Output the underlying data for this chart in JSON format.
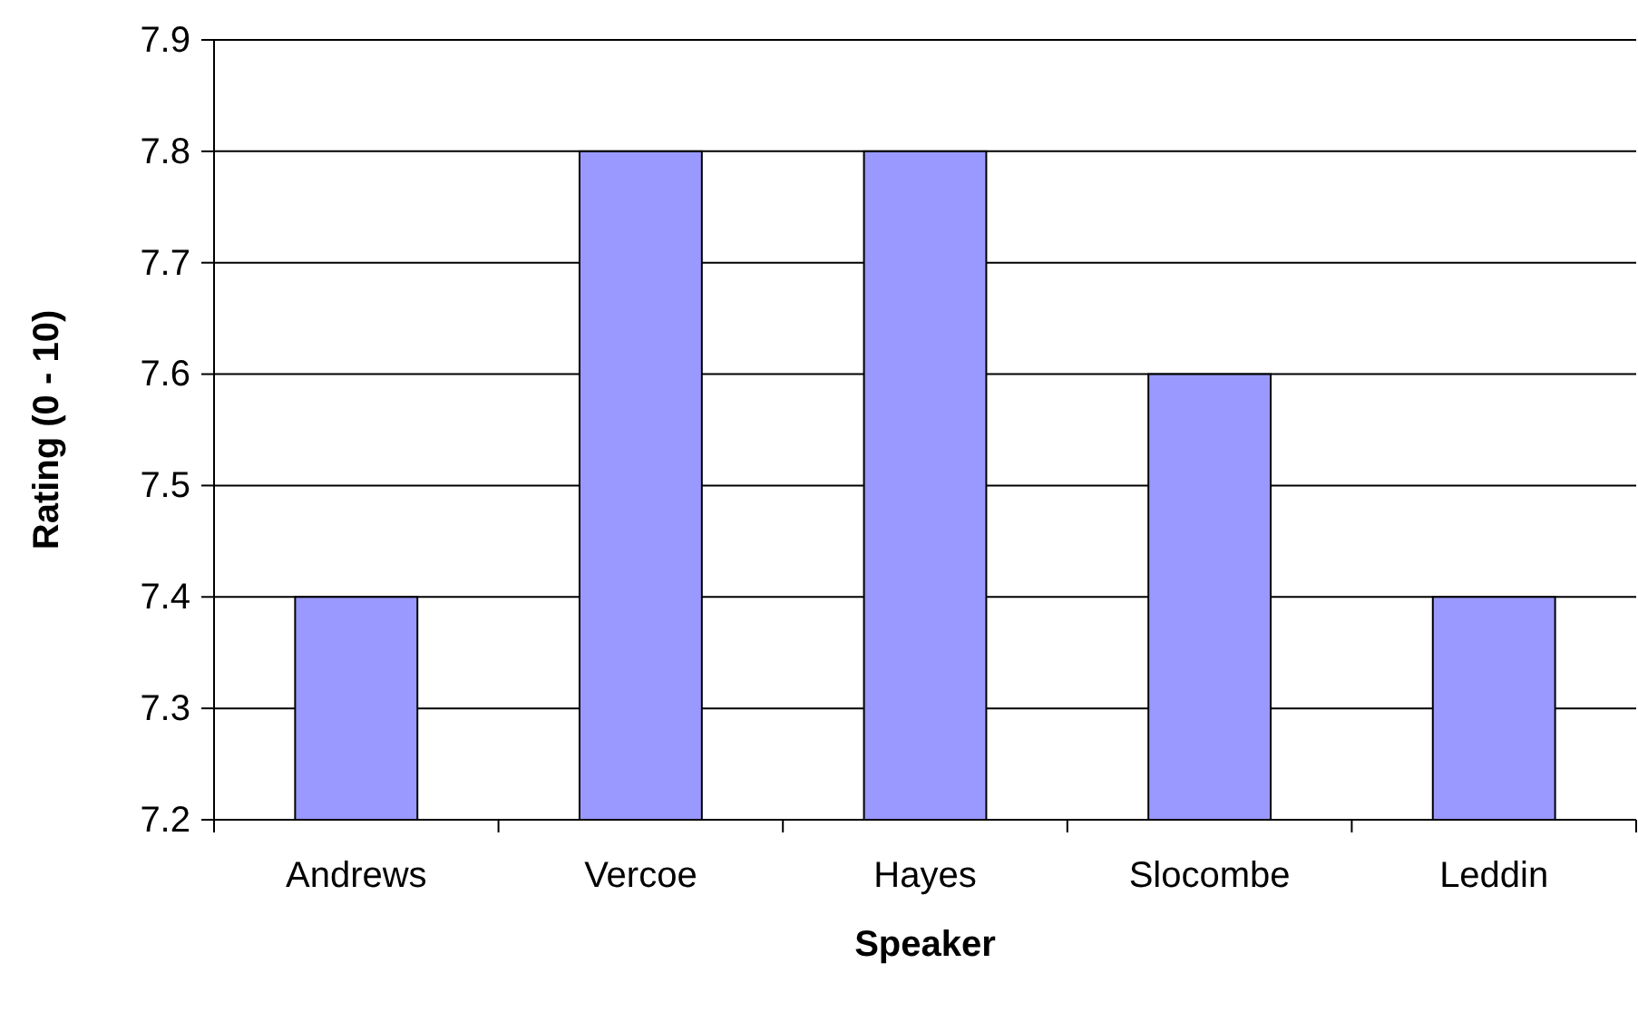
{
  "chart_data": {
    "type": "bar",
    "xlabel": "Speaker",
    "ylabel": "Rating (0 - 10)",
    "categories": [
      "Andrews",
      "Vercoe",
      "Hayes",
      "Slocombe",
      "Leddin"
    ],
    "values": [
      7.4,
      7.8,
      7.8,
      7.6,
      7.4
    ],
    "color": "#9999ff",
    "ylim": [
      7.2,
      7.9
    ],
    "yticks": [
      7.2,
      7.3,
      7.4,
      7.5,
      7.6,
      7.7,
      7.8,
      7.9
    ],
    "grid": "y"
  }
}
